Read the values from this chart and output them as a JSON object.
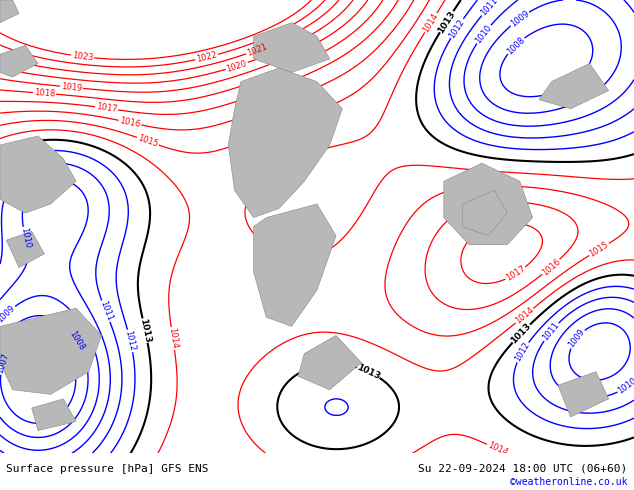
{
  "bg_color": "#ccff66",
  "land_color": "#b8b8b8",
  "land_edge": "#888888",
  "title_left": "Surface pressure [hPa] GFS ENS",
  "title_right": "Su 22-09-2024 18:00 UTC (06+60)",
  "credit": "©weatheronline.co.uk",
  "fig_width": 6.34,
  "fig_height": 4.9,
  "dpi": 100,
  "levels_red": [
    1014,
    1015,
    1016,
    1017,
    1018,
    1019,
    1020,
    1021,
    1022,
    1023
  ],
  "levels_blue": [
    1007,
    1008,
    1009,
    1010,
    1011,
    1012
  ],
  "levels_black": [
    1013
  ]
}
